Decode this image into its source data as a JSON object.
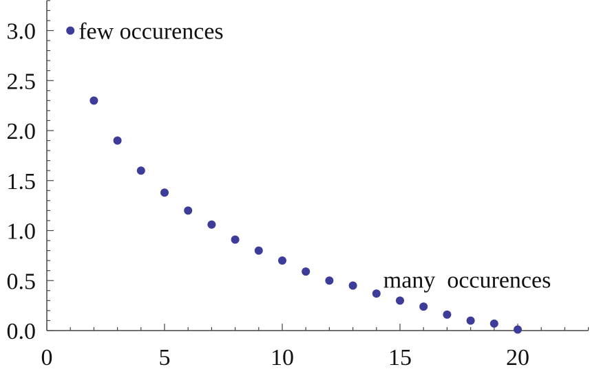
{
  "chart_data": {
    "type": "scatter",
    "title": "",
    "xlabel": "",
    "ylabel": "",
    "xlim": [
      0,
      23
    ],
    "ylim": [
      0,
      3.3
    ],
    "grid": false,
    "x_ticks": [
      0,
      5,
      10,
      15,
      20
    ],
    "x_tick_labels": [
      "0",
      "5",
      "10",
      "15",
      "20"
    ],
    "y_ticks": [
      0,
      0.5,
      1.0,
      1.5,
      2.0,
      2.5,
      3.0
    ],
    "y_tick_labels": [
      "0.0",
      "0.5",
      "1.0",
      "1.5",
      "2.0",
      "2.5",
      "3.0"
    ],
    "point_color": "#3d3d99",
    "x": [
      1,
      2,
      3,
      4,
      5,
      6,
      7,
      8,
      9,
      10,
      11,
      12,
      13,
      14,
      15,
      16,
      17,
      18,
      19,
      20
    ],
    "y": [
      3.0,
      2.3,
      1.9,
      1.6,
      1.38,
      1.2,
      1.06,
      0.91,
      0.8,
      0.7,
      0.59,
      0.5,
      0.45,
      0.37,
      0.3,
      0.24,
      0.16,
      0.1,
      0.07,
      0.01
    ],
    "annotations": [
      {
        "text": "few occurences",
        "x": 1,
        "y": 3.0
      },
      {
        "text": "many  occurences",
        "x": 14,
        "y": 0.5
      }
    ]
  }
}
